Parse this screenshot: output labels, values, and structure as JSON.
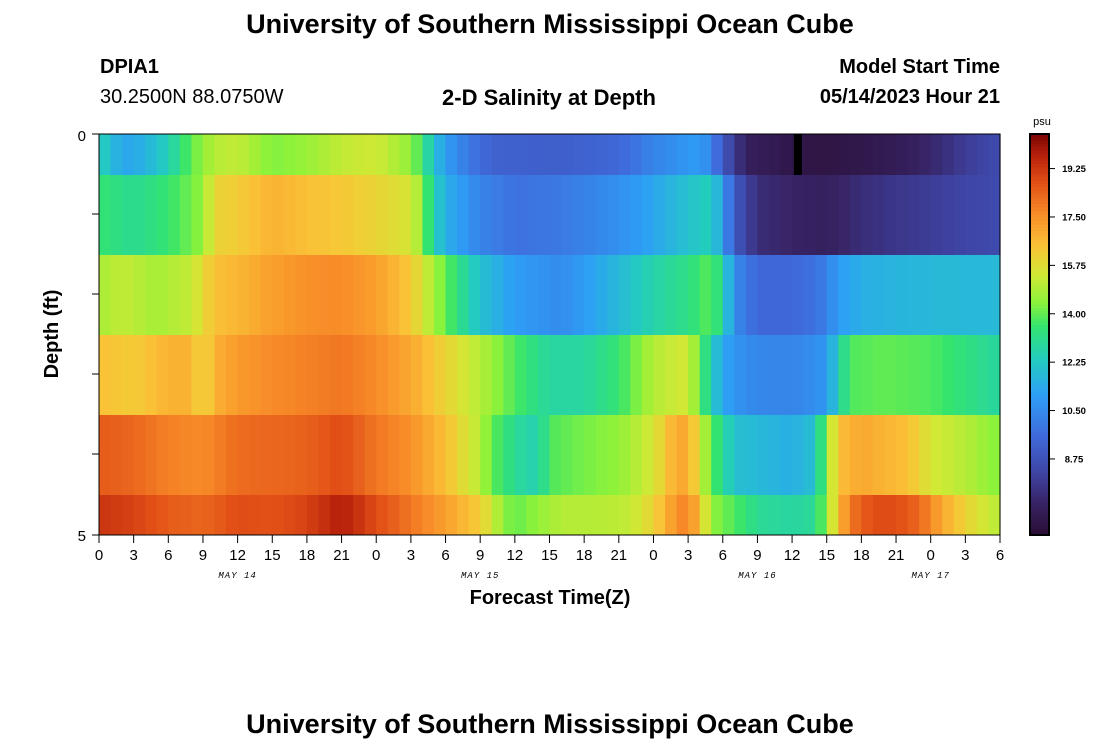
{
  "header": {
    "title": "University of Southern Mississippi Ocean Cube",
    "station_id": "DPIA1",
    "coords": "30.2500N  88.0750W",
    "product": "2-D Salinity at Depth",
    "model_start_label": "Model Start Time",
    "model_start_value": "05/14/2023 Hour 21"
  },
  "footer": {
    "title": "University of Southern Mississippi Ocean Cube"
  },
  "chart_data": {
    "type": "heatmap",
    "title": "2-D Salinity at Depth",
    "xlabel": "Forecast Time(Z)",
    "ylabel": "Depth (ft)",
    "ylim": [
      0,
      5
    ],
    "y_tick_labels": [
      "0",
      "5"
    ],
    "x_tick_labels": [
      "0",
      "3",
      "6",
      "9",
      "12",
      "15",
      "18",
      "21",
      "0",
      "3",
      "6",
      "9",
      "12",
      "15",
      "18",
      "21",
      "0",
      "3",
      "6",
      "9",
      "12",
      "15",
      "18",
      "21",
      "0",
      "3",
      "6"
    ],
    "date_labels": [
      {
        "text": "MAY 14",
        "hour_offset": 12
      },
      {
        "text": "MAY 15",
        "hour_offset": 33
      },
      {
        "text": "MAY 16",
        "hour_offset": 57
      },
      {
        "text": "MAY 17",
        "hour_offset": 72
      }
    ],
    "colorbar": {
      "unit": "psu",
      "min": 6.0,
      "max": 20.5,
      "tick_labels": [
        "19.25",
        "17.50",
        "15.75",
        "14.00",
        "12.25",
        "10.50",
        "8.75"
      ]
    },
    "hours": [
      0,
      78
    ],
    "layers": [
      {
        "depth": "0.0-0.5 ft",
        "anchors": [
          [
            0,
            12.5
          ],
          [
            1,
            12.0
          ],
          [
            2,
            11.2
          ],
          [
            4,
            11.6
          ],
          [
            6,
            12.5
          ],
          [
            8,
            14.0
          ],
          [
            10,
            15.0
          ],
          [
            12,
            15.2
          ],
          [
            15,
            14.3
          ],
          [
            18,
            14.6
          ],
          [
            21,
            15.2
          ],
          [
            24,
            15.4
          ],
          [
            27,
            14.5
          ],
          [
            28,
            13.5
          ],
          [
            29,
            12.0
          ],
          [
            30,
            11.0
          ],
          [
            32,
            10.0
          ],
          [
            34,
            9.3
          ],
          [
            40,
            9.2
          ],
          [
            45,
            9.5
          ],
          [
            48,
            10.3
          ],
          [
            52,
            11.0
          ],
          [
            53,
            10.3
          ],
          [
            54,
            9.0
          ],
          [
            55,
            8.0
          ],
          [
            56,
            7.0
          ],
          [
            58,
            6.8
          ],
          [
            60,
            6.5
          ],
          [
            63,
            6.4
          ],
          [
            66,
            6.6
          ],
          [
            69,
            6.8
          ],
          [
            72,
            7.3
          ],
          [
            75,
            8.0
          ],
          [
            78,
            8.5
          ]
        ]
      },
      {
        "depth": "0.5-1.5 ft",
        "anchors": [
          [
            0,
            13.5
          ],
          [
            3,
            13.0
          ],
          [
            6,
            13.5
          ],
          [
            9,
            14.5
          ],
          [
            10,
            16.0
          ],
          [
            12,
            16.2
          ],
          [
            15,
            16.8
          ],
          [
            18,
            16.5
          ],
          [
            21,
            16.3
          ],
          [
            24,
            16.0
          ],
          [
            27,
            15.5
          ],
          [
            28,
            14.5
          ],
          [
            29,
            12.5
          ],
          [
            30,
            11.5
          ],
          [
            33,
            10.3
          ],
          [
            36,
            9.8
          ],
          [
            40,
            10.0
          ],
          [
            44,
            10.5
          ],
          [
            47,
            11.0
          ],
          [
            50,
            11.8
          ],
          [
            53,
            12.5
          ],
          [
            54,
            11.0
          ],
          [
            55,
            9.0
          ],
          [
            57,
            7.5
          ],
          [
            60,
            7.2
          ],
          [
            63,
            7.0
          ],
          [
            66,
            7.5
          ],
          [
            69,
            7.8
          ],
          [
            72,
            8.0
          ],
          [
            75,
            8.3
          ],
          [
            78,
            8.5
          ]
        ]
      },
      {
        "depth": "1.5-2.5 ft",
        "anchors": [
          [
            0,
            14.8
          ],
          [
            2,
            15.2
          ],
          [
            5,
            14.8
          ],
          [
            8,
            15.2
          ],
          [
            10,
            16.5
          ],
          [
            12,
            16.7
          ],
          [
            15,
            17.2
          ],
          [
            18,
            17.5
          ],
          [
            21,
            17.6
          ],
          [
            24,
            17.2
          ],
          [
            27,
            16.3
          ],
          [
            30,
            14.0
          ],
          [
            33,
            12.0
          ],
          [
            36,
            11.0
          ],
          [
            40,
            10.5
          ],
          [
            44,
            11.5
          ],
          [
            48,
            12.7
          ],
          [
            51,
            13.2
          ],
          [
            53,
            14.0
          ],
          [
            54,
            12.8
          ],
          [
            55,
            10.5
          ],
          [
            57,
            9.5
          ],
          [
            60,
            9.5
          ],
          [
            62,
            9.8
          ],
          [
            63,
            10.2
          ],
          [
            64,
            11.0
          ],
          [
            66,
            11.5
          ],
          [
            70,
            11.7
          ],
          [
            74,
            11.8
          ],
          [
            78,
            11.8
          ]
        ]
      },
      {
        "depth": "2.5-3.5 ft",
        "anchors": [
          [
            0,
            16.5
          ],
          [
            3,
            16.2
          ],
          [
            6,
            16.8
          ],
          [
            8,
            16.8
          ],
          [
            9,
            15.8
          ],
          [
            10,
            16.8
          ],
          [
            12,
            17.3
          ],
          [
            15,
            17.6
          ],
          [
            18,
            17.8
          ],
          [
            21,
            18.0
          ],
          [
            24,
            17.6
          ],
          [
            27,
            17.0
          ],
          [
            30,
            16.0
          ],
          [
            33,
            15.0
          ],
          [
            36,
            13.8
          ],
          [
            39,
            12.8
          ],
          [
            42,
            12.8
          ],
          [
            45,
            13.5
          ],
          [
            47,
            14.5
          ],
          [
            48,
            15.0
          ],
          [
            51,
            15.5
          ],
          [
            52,
            14.0
          ],
          [
            53,
            12.5
          ],
          [
            54,
            11.2
          ],
          [
            56,
            10.5
          ],
          [
            60,
            10.3
          ],
          [
            63,
            10.8
          ],
          [
            64,
            12.5
          ],
          [
            65,
            13.8
          ],
          [
            68,
            14.0
          ],
          [
            72,
            13.8
          ],
          [
            75,
            13.3
          ],
          [
            78,
            12.8
          ]
        ]
      },
      {
        "depth": "3.5-4.5 ft",
        "anchors": [
          [
            0,
            18.5
          ],
          [
            3,
            18.3
          ],
          [
            6,
            17.8
          ],
          [
            9,
            17.6
          ],
          [
            12,
            18.2
          ],
          [
            15,
            18.3
          ],
          [
            18,
            18.4
          ],
          [
            21,
            18.8
          ],
          [
            24,
            18.0
          ],
          [
            27,
            17.5
          ],
          [
            30,
            16.5
          ],
          [
            33,
            15.0
          ],
          [
            34,
            14.0
          ],
          [
            36,
            13.0
          ],
          [
            38,
            12.5
          ],
          [
            39,
            13.8
          ],
          [
            42,
            14.2
          ],
          [
            45,
            14.5
          ],
          [
            48,
            15.5
          ],
          [
            50,
            17.0
          ],
          [
            51,
            17.0
          ],
          [
            52,
            15.5
          ],
          [
            53,
            14.0
          ],
          [
            55,
            12.0
          ],
          [
            60,
            11.5
          ],
          [
            62,
            12.0
          ],
          [
            63,
            14.5
          ],
          [
            64,
            16.5
          ],
          [
            66,
            17.0
          ],
          [
            70,
            16.5
          ],
          [
            72,
            15.5
          ],
          [
            75,
            15.0
          ],
          [
            78,
            14.3
          ]
        ]
      },
      {
        "depth": "4.5-5.0 ft",
        "anchors": [
          [
            0,
            19.3
          ],
          [
            3,
            19.0
          ],
          [
            6,
            18.5
          ],
          [
            9,
            18.3
          ],
          [
            12,
            18.8
          ],
          [
            15,
            18.7
          ],
          [
            18,
            19.0
          ],
          [
            21,
            19.8
          ],
          [
            24,
            18.8
          ],
          [
            27,
            18.0
          ],
          [
            30,
            17.2
          ],
          [
            33,
            16.2
          ],
          [
            35,
            14.5
          ],
          [
            36,
            14.0
          ],
          [
            38,
            14.5
          ],
          [
            40,
            15.0
          ],
          [
            43,
            15.0
          ],
          [
            46,
            15.2
          ],
          [
            48,
            16.0
          ],
          [
            50,
            17.5
          ],
          [
            51,
            17.8
          ],
          [
            52,
            16.5
          ],
          [
            53,
            14.5
          ],
          [
            55,
            13.8
          ],
          [
            57,
            13.0
          ],
          [
            60,
            12.8
          ],
          [
            62,
            13.0
          ],
          [
            63,
            14.5
          ],
          [
            64,
            16.5
          ],
          [
            65,
            18.0
          ],
          [
            67,
            18.8
          ],
          [
            69,
            18.8
          ],
          [
            71,
            18.3
          ],
          [
            73,
            17.0
          ],
          [
            75,
            16.0
          ],
          [
            78,
            15.0
          ]
        ]
      }
    ],
    "annotation": {
      "type": "black-bar",
      "hour": 60.5,
      "layer": 0
    }
  }
}
